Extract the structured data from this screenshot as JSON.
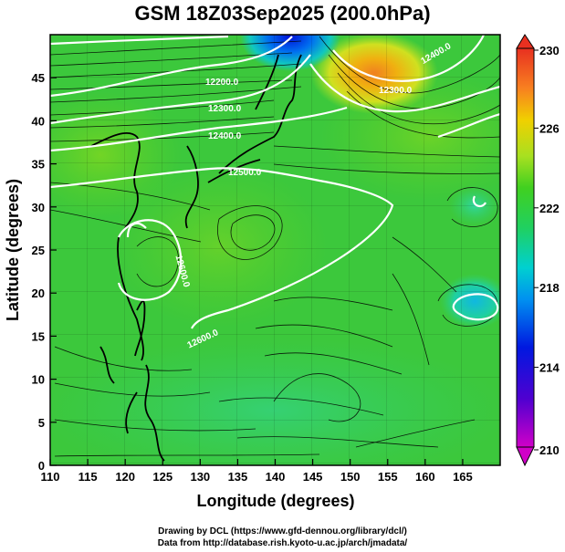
{
  "title": "GSM 18Z03Sep2025 (200.0hPa)",
  "xlabel": "Longitude (degrees)",
  "ylabel": "Latitude  (degrees)",
  "credits": {
    "line1": "Drawing by DCL (https://www.gfd-dennou.org/library/dcl/)",
    "line2": "Data from http://database.rish.kyoto-u.ac.jp/arch/jmadata/"
  },
  "chart_data": {
    "type": "heatmap",
    "title": "GSM 18Z03Sep2025 (200.0hPa)",
    "xlabel": "Longitude (degrees)",
    "ylabel": "Latitude  (degrees)",
    "xlim": [
      110,
      170
    ],
    "ylim": [
      0,
      50
    ],
    "xticks": [
      "110",
      "115",
      "120",
      "125",
      "130",
      "135",
      "140",
      "145",
      "150",
      "155",
      "160",
      "165"
    ],
    "yticks": [
      "0",
      "5",
      "10",
      "15",
      "20",
      "25",
      "30",
      "35",
      "40",
      "45"
    ],
    "colorbar": {
      "min": 210,
      "max": 230,
      "ticks": [
        "230",
        "226",
        "222",
        "218",
        "214",
        "210"
      ]
    },
    "contour_labels": [
      "12200.0",
      "12300.0",
      "12400.0",
      "12500.0",
      "12600.0",
      "12400.0",
      "12300.0",
      "12600.0"
    ]
  },
  "colors": {
    "frame": "#000000",
    "contour": "#ffffff",
    "coast": "#000000"
  }
}
